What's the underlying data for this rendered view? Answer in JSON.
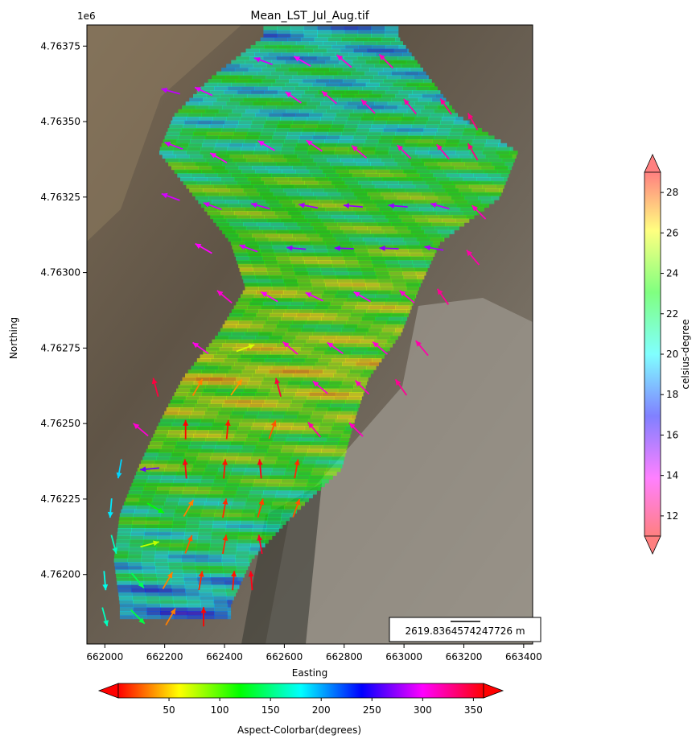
{
  "chart_data": {
    "type": "heatmap",
    "title": "Mean_LST_Jul_Aug.tif",
    "xlabel": "Easting",
    "ylabel": "Northing",
    "y_offset_label": "1e6",
    "xlim": [
      661940,
      663430
    ],
    "ylim": [
      4.76177,
      4.76382
    ],
    "x_ticks": [
      662000,
      662200,
      662400,
      662600,
      662800,
      663000,
      663200,
      663400
    ],
    "x_tick_labels": [
      "662000",
      "662200",
      "662400",
      "662600",
      "662800",
      "663000",
      "663200",
      "663400"
    ],
    "y_ticks": [
      4.762,
      4.76225,
      4.7625,
      4.76275,
      4.763,
      4.76325,
      4.7635,
      4.76375
    ],
    "y_tick_labels": [
      "4.76200",
      "4.76225",
      "4.76250",
      "4.76275",
      "4.76300",
      "4.76325",
      "4.76350",
      "4.76375"
    ],
    "scalebar_label": "2619.8364574247726 m",
    "colorbar_temperature": {
      "label": "celsius-degree",
      "range": [
        11,
        29
      ],
      "ticks": [
        12,
        14,
        16,
        18,
        20,
        22,
        24,
        26,
        28
      ],
      "extend": "both",
      "colormap": [
        "#ff0000",
        "#ff00ff",
        "#0000ff",
        "#00ffff",
        "#00ff00",
        "#ffff00",
        "#ff0000"
      ]
    },
    "colorbar_aspect": {
      "label": "Aspect-Colorbar(degrees)",
      "range": [
        0,
        360
      ],
      "ticks": [
        50,
        100,
        150,
        200,
        250,
        300,
        350
      ],
      "extend": "both",
      "colormap": "hsv"
    },
    "heatmap_rows": [
      {
        "northing": 4.76378,
        "east_start": 662530,
        "east_end": 662980,
        "mean_temp": 20
      },
      {
        "northing": 4.76365,
        "east_start": 662360,
        "east_end": 663080,
        "mean_temp": 21
      },
      {
        "northing": 4.76352,
        "east_start": 662230,
        "east_end": 663180,
        "mean_temp": 21
      },
      {
        "northing": 4.7634,
        "east_start": 662180,
        "east_end": 663380,
        "mean_temp": 22
      },
      {
        "northing": 4.76325,
        "east_start": 662300,
        "east_end": 663320,
        "mean_temp": 23
      },
      {
        "northing": 4.7631,
        "east_start": 662420,
        "east_end": 663120,
        "mean_temp": 23
      },
      {
        "northing": 4.76295,
        "east_start": 662470,
        "east_end": 663050,
        "mean_temp": 24
      },
      {
        "northing": 4.7628,
        "east_start": 662380,
        "east_end": 662990,
        "mean_temp": 24
      },
      {
        "northing": 4.76265,
        "east_start": 662260,
        "east_end": 662880,
        "mean_temp": 25
      },
      {
        "northing": 4.7625,
        "east_start": 662180,
        "east_end": 662830,
        "mean_temp": 24
      },
      {
        "northing": 4.76235,
        "east_start": 662110,
        "east_end": 662790,
        "mean_temp": 23
      },
      {
        "northing": 4.7622,
        "east_start": 662050,
        "east_end": 662630,
        "mean_temp": 22
      },
      {
        "northing": 4.76205,
        "east_start": 662030,
        "east_end": 662490,
        "mean_temp": 21
      },
      {
        "northing": 4.7619,
        "east_start": 662050,
        "east_end": 662420,
        "mean_temp": 19
      }
    ],
    "aspect_vectors": [
      {
        "e": 662530,
        "n": 4.7637,
        "aspect": 290
      },
      {
        "e": 662660,
        "n": 4.7637,
        "aspect": 300
      },
      {
        "e": 662800,
        "n": 4.7637,
        "aspect": 310
      },
      {
        "e": 662940,
        "n": 4.7637,
        "aspect": 315
      },
      {
        "e": 662220,
        "n": 4.7636,
        "aspect": 285
      },
      {
        "e": 662330,
        "n": 4.7636,
        "aspect": 295
      },
      {
        "e": 662630,
        "n": 4.76358,
        "aspect": 305
      },
      {
        "e": 662750,
        "n": 4.76358,
        "aspect": 310
      },
      {
        "e": 662880,
        "n": 4.76355,
        "aspect": 315
      },
      {
        "e": 663020,
        "n": 4.76355,
        "aspect": 320
      },
      {
        "e": 663140,
        "n": 4.76355,
        "aspect": 325
      },
      {
        "e": 663230,
        "n": 4.7635,
        "aspect": 330
      },
      {
        "e": 662230,
        "n": 4.76342,
        "aspect": 290
      },
      {
        "e": 662380,
        "n": 4.76338,
        "aspect": 300
      },
      {
        "e": 662540,
        "n": 4.76342,
        "aspect": 300
      },
      {
        "e": 662700,
        "n": 4.76342,
        "aspect": 305
      },
      {
        "e": 662850,
        "n": 4.7634,
        "aspect": 310
      },
      {
        "e": 663000,
        "n": 4.7634,
        "aspect": 315
      },
      {
        "e": 663130,
        "n": 4.7634,
        "aspect": 320
      },
      {
        "e": 663230,
        "n": 4.7634,
        "aspect": 330
      },
      {
        "e": 662220,
        "n": 4.76325,
        "aspect": 290
      },
      {
        "e": 662360,
        "n": 4.76322,
        "aspect": 290
      },
      {
        "e": 662520,
        "n": 4.76322,
        "aspect": 285
      },
      {
        "e": 662680,
        "n": 4.76322,
        "aspect": 280
      },
      {
        "e": 662830,
        "n": 4.76322,
        "aspect": 275
      },
      {
        "e": 662980,
        "n": 4.76322,
        "aspect": 275
      },
      {
        "e": 663120,
        "n": 4.76322,
        "aspect": 285
      },
      {
        "e": 663250,
        "n": 4.7632,
        "aspect": 315
      },
      {
        "e": 662330,
        "n": 4.76308,
        "aspect": 300
      },
      {
        "e": 662480,
        "n": 4.76308,
        "aspect": 290
      },
      {
        "e": 662640,
        "n": 4.76308,
        "aspect": 275
      },
      {
        "e": 662800,
        "n": 4.76308,
        "aspect": 272
      },
      {
        "e": 662950,
        "n": 4.76308,
        "aspect": 272
      },
      {
        "e": 663100,
        "n": 4.76308,
        "aspect": 280
      },
      {
        "e": 663230,
        "n": 4.76305,
        "aspect": 320
      },
      {
        "e": 662400,
        "n": 4.76292,
        "aspect": 310
      },
      {
        "e": 662550,
        "n": 4.76292,
        "aspect": 300
      },
      {
        "e": 662700,
        "n": 4.76292,
        "aspect": 295
      },
      {
        "e": 662860,
        "n": 4.76292,
        "aspect": 300
      },
      {
        "e": 663010,
        "n": 4.76292,
        "aspect": 310
      },
      {
        "e": 663130,
        "n": 4.76292,
        "aspect": 325
      },
      {
        "e": 662320,
        "n": 4.76275,
        "aspect": 305
      },
      {
        "e": 662470,
        "n": 4.76275,
        "aspect": 70
      },
      {
        "e": 662620,
        "n": 4.76275,
        "aspect": 310
      },
      {
        "e": 662770,
        "n": 4.76275,
        "aspect": 305
      },
      {
        "e": 662920,
        "n": 4.76275,
        "aspect": 310
      },
      {
        "e": 663060,
        "n": 4.76275,
        "aspect": 320
      },
      {
        "e": 662170,
        "n": 4.76262,
        "aspect": 345
      },
      {
        "e": 662310,
        "n": 4.76262,
        "aspect": 30
      },
      {
        "e": 662440,
        "n": 4.76262,
        "aspect": 35
      },
      {
        "e": 662580,
        "n": 4.76262,
        "aspect": 345
      },
      {
        "e": 662720,
        "n": 4.76262,
        "aspect": 310
      },
      {
        "e": 662860,
        "n": 4.76262,
        "aspect": 315
      },
      {
        "e": 662990,
        "n": 4.76262,
        "aspect": 325
      },
      {
        "e": 662120,
        "n": 4.76248,
        "aspect": 310
      },
      {
        "e": 662270,
        "n": 4.76248,
        "aspect": 0
      },
      {
        "e": 662410,
        "n": 4.76248,
        "aspect": 5
      },
      {
        "e": 662560,
        "n": 4.76248,
        "aspect": 20
      },
      {
        "e": 662700,
        "n": 4.76248,
        "aspect": 320
      },
      {
        "e": 662840,
        "n": 4.76248,
        "aspect": 315
      },
      {
        "e": 662050,
        "n": 4.76235,
        "aspect": 190
      },
      {
        "e": 662150,
        "n": 4.76235,
        "aspect": 265
      },
      {
        "e": 662270,
        "n": 4.76235,
        "aspect": 355
      },
      {
        "e": 662400,
        "n": 4.76235,
        "aspect": 5
      },
      {
        "e": 662520,
        "n": 4.76235,
        "aspect": 355
      },
      {
        "e": 662640,
        "n": 4.76235,
        "aspect": 10
      },
      {
        "e": 662020,
        "n": 4.76222,
        "aspect": 185
      },
      {
        "e": 662170,
        "n": 4.76222,
        "aspect": 120
      },
      {
        "e": 662280,
        "n": 4.76222,
        "aspect": 30
      },
      {
        "e": 662400,
        "n": 4.76222,
        "aspect": 10
      },
      {
        "e": 662520,
        "n": 4.76222,
        "aspect": 15
      },
      {
        "e": 662640,
        "n": 4.76222,
        "aspect": 20
      },
      {
        "e": 662030,
        "n": 4.7621,
        "aspect": 165
      },
      {
        "e": 662150,
        "n": 4.7621,
        "aspect": 75
      },
      {
        "e": 662280,
        "n": 4.7621,
        "aspect": 20
      },
      {
        "e": 662400,
        "n": 4.7621,
        "aspect": 10
      },
      {
        "e": 662520,
        "n": 4.7621,
        "aspect": 350
      },
      {
        "e": 662000,
        "n": 4.76198,
        "aspect": 175
      },
      {
        "e": 662110,
        "n": 4.76198,
        "aspect": 140
      },
      {
        "e": 662210,
        "n": 4.76198,
        "aspect": 30
      },
      {
        "e": 662320,
        "n": 4.76198,
        "aspect": 10
      },
      {
        "e": 662430,
        "n": 4.76198,
        "aspect": 5
      },
      {
        "e": 662490,
        "n": 4.76198,
        "aspect": 355
      },
      {
        "e": 662000,
        "n": 4.76186,
        "aspect": 165
      },
      {
        "e": 662110,
        "n": 4.76186,
        "aspect": 135
      },
      {
        "e": 662220,
        "n": 4.76186,
        "aspect": 30
      },
      {
        "e": 662330,
        "n": 4.76186,
        "aspect": 0
      }
    ]
  }
}
